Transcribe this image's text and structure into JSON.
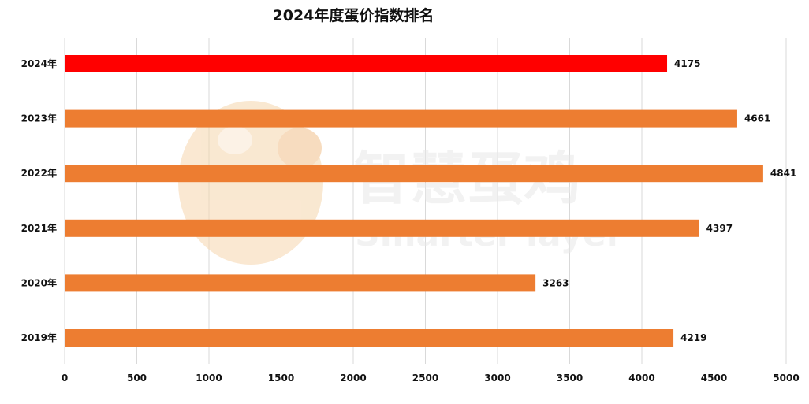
{
  "chart_data": {
    "type": "bar",
    "orientation": "horizontal",
    "title": "2024年度蛋价指数排名",
    "categories": [
      "2024年",
      "2023年",
      "2022年",
      "2021年",
      "2020年",
      "2019年"
    ],
    "values": [
      4175,
      4661,
      4841,
      4397,
      3263,
      4219
    ],
    "bar_colors": [
      "#ff0000",
      "#ed7d31",
      "#ed7d31",
      "#ed7d31",
      "#ed7d31",
      "#ed7d31"
    ],
    "xlim": [
      0,
      5000
    ],
    "x_ticks": [
      0,
      500,
      1000,
      1500,
      2000,
      2500,
      3000,
      3500,
      4000,
      4500,
      5000
    ],
    "grid": "vertical",
    "data_labels": true
  },
  "watermark": {
    "text": "智慧蛋鸡",
    "subtext": "Smarter layer"
  }
}
